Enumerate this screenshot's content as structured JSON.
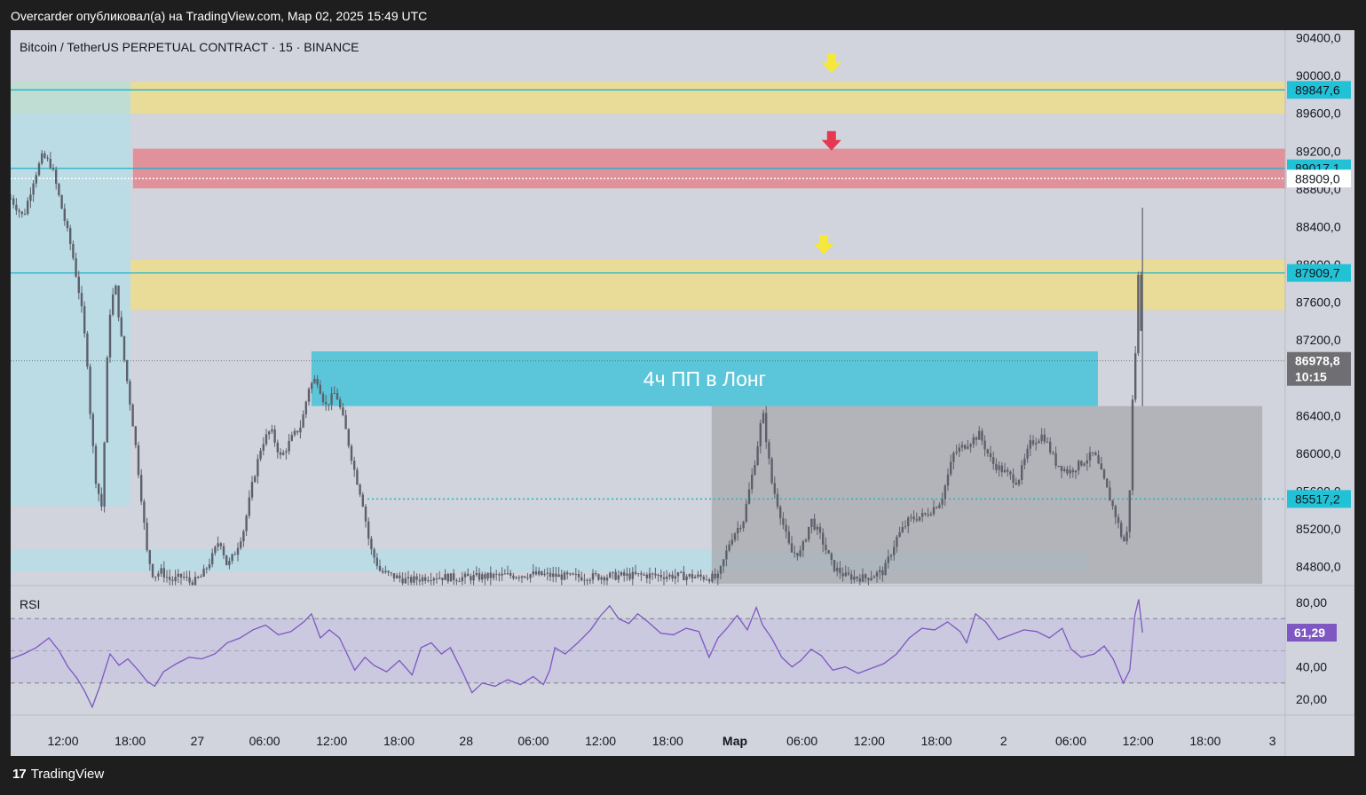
{
  "caption": "Overcarder опубликовал(а) на TradingView.com, Мар 02, 2025 15:49 UTC",
  "footer": {
    "brand": "TradingView"
  },
  "colors": {
    "background": "#d1d4dc",
    "candle": "#5d606b",
    "yellow_zone": "#e8dc98",
    "red_zone": "#e0919a",
    "cyan_line": "#1fb3c7",
    "long_box": "#5bc6d9",
    "gray_box": "#a8a9ad",
    "light_blue_zone": "#b3dde8",
    "rsi_line": "#7e57c2",
    "rsi_band": "#c9c4e0",
    "arrow_yellow": "#f5e83b",
    "arrow_red": "#e53950"
  },
  "chart_data": {
    "type": "candlestick",
    "title": "Bitcoin / TetherUS PERPETUAL CONTRACT · 15 · BINANCE",
    "ylim": [
      84600,
      90480
    ],
    "x_ticks": [
      "12:00",
      "18:00",
      "27",
      "06:00",
      "12:00",
      "18:00",
      "28",
      "06:00",
      "12:00",
      "18:00",
      "Мар",
      "06:00",
      "12:00",
      "18:00",
      "2",
      "06:00",
      "12:00",
      "18:00",
      "3"
    ],
    "x_ticks_bold": [
      10
    ],
    "y_ticks": [
      {
        "v": 90400,
        "label": "90400,0"
      },
      {
        "v": 90000,
        "label": "90000,0"
      },
      {
        "v": 89600,
        "label": "89600,0"
      },
      {
        "v": 89200,
        "label": "89200,0"
      },
      {
        "v": 88800,
        "label": "88800,0"
      },
      {
        "v": 88400,
        "label": "88400,0"
      },
      {
        "v": 88000,
        "label": "88000,0"
      },
      {
        "v": 87600,
        "label": "87600,0"
      },
      {
        "v": 87200,
        "label": "87200,0"
      },
      {
        "v": 86400,
        "label": "86400,0"
      },
      {
        "v": 86000,
        "label": "86000,0"
      },
      {
        "v": 85600,
        "label": "85600,0"
      },
      {
        "v": 85200,
        "label": "85200,0"
      },
      {
        "v": 84800,
        "label": "84800,0"
      }
    ],
    "price_tags": [
      {
        "v": 89847.6,
        "label": "89847,6",
        "style": "cyan"
      },
      {
        "v": 89017.1,
        "label": "89017,1",
        "style": "cyan"
      },
      {
        "v": 88909.0,
        "label": "88909,0",
        "style": "white"
      },
      {
        "v": 87909.7,
        "label": "87909,7",
        "style": "cyan"
      },
      {
        "v": 86978.8,
        "label": "86978,8",
        "sub": "10:15",
        "style": "dark"
      },
      {
        "v": 85517.2,
        "label": "85517,2",
        "style": "cyan"
      }
    ],
    "zones": [
      {
        "kind": "yellow",
        "x0": 0,
        "x1": 1,
        "top": 89935,
        "bottom": 89595
      },
      {
        "kind": "red",
        "x0": 0.096,
        "x1": 1,
        "top": 89225,
        "bottom": 88805
      },
      {
        "kind": "yellow",
        "x0": 0.094,
        "x1": 1,
        "top": 88050,
        "bottom": 87515
      },
      {
        "kind": "lightblue",
        "x0": 0,
        "x1": 0.094,
        "top": 89935,
        "bottom": 85440
      },
      {
        "kind": "lightblue",
        "x0": 0,
        "x1": 0.845,
        "top": 84975,
        "bottom": 84750
      },
      {
        "kind": "gray",
        "x0": 0.55,
        "x1": 0.982,
        "top": 86500,
        "bottom": 84620
      }
    ],
    "long_box": {
      "label": "4ч ПП в Лонг",
      "x0": 0.236,
      "x1": 0.853,
      "top": 87080,
      "bottom": 86500
    },
    "arrows": [
      {
        "color": "yellow",
        "x": 0.644,
        "v": 90100
      },
      {
        "color": "red",
        "x": 0.644,
        "v": 89280
      },
      {
        "color": "yellow",
        "x": 0.638,
        "v": 88180
      }
    ],
    "price_path": [
      [
        0.0,
        88700
      ],
      [
        0.01,
        88500
      ],
      [
        0.018,
        88900
      ],
      [
        0.025,
        89150
      ],
      [
        0.032,
        89050
      ],
      [
        0.04,
        88600
      ],
      [
        0.048,
        88150
      ],
      [
        0.055,
        87600
      ],
      [
        0.06,
        87000
      ],
      [
        0.063,
        86300
      ],
      [
        0.067,
        85700
      ],
      [
        0.072,
        85400
      ],
      [
        0.075,
        86800
      ],
      [
        0.078,
        87500
      ],
      [
        0.082,
        87800
      ],
      [
        0.087,
        87200
      ],
      [
        0.092,
        86700
      ],
      [
        0.097,
        86200
      ],
      [
        0.102,
        85600
      ],
      [
        0.107,
        84950
      ],
      [
        0.112,
        84700
      ],
      [
        0.118,
        84750
      ],
      [
        0.126,
        84650
      ],
      [
        0.135,
        84700
      ],
      [
        0.142,
        84620
      ],
      [
        0.15,
        84700
      ],
      [
        0.158,
        84900
      ],
      [
        0.164,
        85100
      ],
      [
        0.17,
        84800
      ],
      [
        0.176,
        84950
      ],
      [
        0.183,
        85200
      ],
      [
        0.19,
        85700
      ],
      [
        0.197,
        86100
      ],
      [
        0.204,
        86250
      ],
      [
        0.212,
        85950
      ],
      [
        0.22,
        86150
      ],
      [
        0.228,
        86300
      ],
      [
        0.234,
        86700
      ],
      [
        0.24,
        86800
      ],
      [
        0.247,
        86500
      ],
      [
        0.255,
        86650
      ],
      [
        0.262,
        86300
      ],
      [
        0.27,
        85800
      ],
      [
        0.276,
        85500
      ],
      [
        0.282,
        85000
      ],
      [
        0.29,
        84750
      ],
      [
        0.3,
        84700
      ],
      [
        0.312,
        84650
      ],
      [
        0.33,
        84700
      ],
      [
        0.35,
        84680
      ],
      [
        0.38,
        84700
      ],
      [
        0.41,
        84720
      ],
      [
        0.44,
        84690
      ],
      [
        0.47,
        84700
      ],
      [
        0.5,
        84710
      ],
      [
        0.53,
        84700
      ],
      [
        0.555,
        84680
      ],
      [
        0.565,
        85100
      ],
      [
        0.575,
        85300
      ],
      [
        0.585,
        86000
      ],
      [
        0.59,
        86450
      ],
      [
        0.597,
        85700
      ],
      [
        0.605,
        85300
      ],
      [
        0.612,
        84950
      ],
      [
        0.62,
        84950
      ],
      [
        0.628,
        85300
      ],
      [
        0.636,
        85100
      ],
      [
        0.645,
        84800
      ],
      [
        0.655,
        84700
      ],
      [
        0.67,
        84680
      ],
      [
        0.685,
        84750
      ],
      [
        0.695,
        85100
      ],
      [
        0.705,
        85300
      ],
      [
        0.718,
        85350
      ],
      [
        0.73,
        85500
      ],
      [
        0.74,
        86000
      ],
      [
        0.75,
        86100
      ],
      [
        0.76,
        86200
      ],
      [
        0.77,
        85900
      ],
      [
        0.78,
        85800
      ],
      [
        0.79,
        85700
      ],
      [
        0.8,
        86100
      ],
      [
        0.81,
        86200
      ],
      [
        0.82,
        85900
      ],
      [
        0.83,
        85800
      ],
      [
        0.84,
        85900
      ],
      [
        0.85,
        86000
      ],
      [
        0.858,
        85700
      ],
      [
        0.868,
        85300
      ],
      [
        0.873,
        85050
      ],
      [
        0.877,
        85200
      ],
      [
        0.88,
        86500
      ],
      [
        0.883,
        87200
      ],
      [
        0.885,
        88000
      ],
      [
        0.887,
        87300
      ]
    ],
    "rsi": {
      "label": "RSI",
      "ylim": [
        10,
        90
      ],
      "y_ticks": [
        {
          "v": 80,
          "label": "80,00"
        },
        {
          "v": 40,
          "label": "40,00"
        },
        {
          "v": 20,
          "label": "20,00"
        }
      ],
      "upper": 70,
      "lower": 30,
      "mid": 50,
      "last": {
        "v": 61.29,
        "label": "61,29"
      },
      "values": [
        [
          0.0,
          45
        ],
        [
          0.01,
          48
        ],
        [
          0.02,
          52
        ],
        [
          0.03,
          58
        ],
        [
          0.038,
          50
        ],
        [
          0.045,
          40
        ],
        [
          0.052,
          33
        ],
        [
          0.058,
          25
        ],
        [
          0.064,
          15
        ],
        [
          0.07,
          28
        ],
        [
          0.078,
          48
        ],
        [
          0.085,
          41
        ],
        [
          0.092,
          45
        ],
        [
          0.1,
          38
        ],
        [
          0.107,
          31
        ],
        [
          0.113,
          28
        ],
        [
          0.12,
          37
        ],
        [
          0.13,
          42
        ],
        [
          0.14,
          46
        ],
        [
          0.15,
          45
        ],
        [
          0.16,
          48
        ],
        [
          0.17,
          55
        ],
        [
          0.18,
          58
        ],
        [
          0.19,
          63
        ],
        [
          0.2,
          66
        ],
        [
          0.21,
          60
        ],
        [
          0.22,
          62
        ],
        [
          0.23,
          68
        ],
        [
          0.236,
          73
        ],
        [
          0.243,
          58
        ],
        [
          0.25,
          63
        ],
        [
          0.258,
          58
        ],
        [
          0.264,
          48
        ],
        [
          0.27,
          38
        ],
        [
          0.278,
          46
        ],
        [
          0.285,
          41
        ],
        [
          0.295,
          37
        ],
        [
          0.305,
          44
        ],
        [
          0.315,
          35
        ],
        [
          0.322,
          52
        ],
        [
          0.33,
          55
        ],
        [
          0.338,
          48
        ],
        [
          0.345,
          52
        ],
        [
          0.355,
          36
        ],
        [
          0.362,
          24
        ],
        [
          0.37,
          30
        ],
        [
          0.38,
          28
        ],
        [
          0.39,
          32
        ],
        [
          0.4,
          29
        ],
        [
          0.41,
          34
        ],
        [
          0.418,
          29
        ],
        [
          0.423,
          38
        ],
        [
          0.427,
          52
        ],
        [
          0.435,
          48
        ],
        [
          0.445,
          55
        ],
        [
          0.455,
          63
        ],
        [
          0.463,
          72
        ],
        [
          0.47,
          78
        ],
        [
          0.477,
          70
        ],
        [
          0.485,
          67
        ],
        [
          0.492,
          73
        ],
        [
          0.5,
          68
        ],
        [
          0.51,
          61
        ],
        [
          0.52,
          60
        ],
        [
          0.53,
          64
        ],
        [
          0.54,
          62
        ],
        [
          0.548,
          46
        ],
        [
          0.555,
          58
        ],
        [
          0.562,
          64
        ],
        [
          0.57,
          72
        ],
        [
          0.578,
          63
        ],
        [
          0.585,
          77
        ],
        [
          0.59,
          66
        ],
        [
          0.597,
          58
        ],
        [
          0.605,
          46
        ],
        [
          0.613,
          40
        ],
        [
          0.62,
          44
        ],
        [
          0.628,
          51
        ],
        [
          0.636,
          47
        ],
        [
          0.645,
          38
        ],
        [
          0.655,
          40
        ],
        [
          0.665,
          36
        ],
        [
          0.675,
          39
        ],
        [
          0.685,
          42
        ],
        [
          0.695,
          48
        ],
        [
          0.705,
          58
        ],
        [
          0.715,
          64
        ],
        [
          0.725,
          63
        ],
        [
          0.735,
          68
        ],
        [
          0.745,
          62
        ],
        [
          0.75,
          55
        ],
        [
          0.757,
          73
        ],
        [
          0.765,
          68
        ],
        [
          0.775,
          57
        ],
        [
          0.785,
          60
        ],
        [
          0.795,
          63
        ],
        [
          0.805,
          62
        ],
        [
          0.815,
          58
        ],
        [
          0.825,
          64
        ],
        [
          0.832,
          51
        ],
        [
          0.84,
          46
        ],
        [
          0.85,
          48
        ],
        [
          0.858,
          53
        ],
        [
          0.865,
          45
        ],
        [
          0.873,
          30
        ],
        [
          0.878,
          38
        ],
        [
          0.882,
          72
        ],
        [
          0.885,
          82
        ],
        [
          0.888,
          61.29
        ]
      ]
    }
  }
}
